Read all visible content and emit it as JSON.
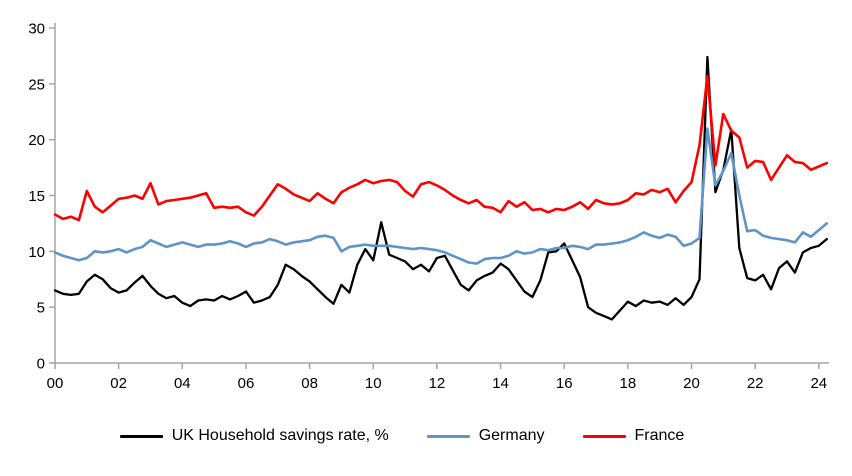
{
  "chart_data": {
    "type": "line",
    "title": "",
    "xlabel": "",
    "ylabel": "",
    "ylim": [
      0,
      30
    ],
    "xlim": [
      0,
      24.32
    ],
    "x_start": 0,
    "x_step": 0.25,
    "x_unit": "quarterly, years 2000-2024",
    "grid": "off",
    "legend_position": "bottom",
    "axis_color": "#a6a6a6",
    "tick_text_color": "#000000",
    "y_ticks": [
      0,
      5,
      10,
      15,
      20,
      25,
      30
    ],
    "x_ticks": [
      {
        "pos": 0,
        "label": "00"
      },
      {
        "pos": 2,
        "label": "02"
      },
      {
        "pos": 4,
        "label": "04"
      },
      {
        "pos": 6,
        "label": "06"
      },
      {
        "pos": 8,
        "label": "08"
      },
      {
        "pos": 10,
        "label": "10"
      },
      {
        "pos": 12,
        "label": "12"
      },
      {
        "pos": 14,
        "label": "14"
      },
      {
        "pos": 16,
        "label": "16"
      },
      {
        "pos": 18,
        "label": "18"
      },
      {
        "pos": 20,
        "label": "20"
      },
      {
        "pos": 22,
        "label": "22"
      },
      {
        "pos": 24,
        "label": "24"
      }
    ],
    "series": [
      {
        "name": "UK Household savings rate, %",
        "color": "#000000",
        "stroke_width": 2.3,
        "values": [
          6.5,
          6.2,
          6.1,
          6.2,
          7.3,
          7.9,
          7.5,
          6.7,
          6.3,
          6.5,
          7.2,
          7.8,
          6.9,
          6.2,
          5.8,
          6.0,
          5.4,
          5.1,
          5.6,
          5.7,
          5.6,
          6.0,
          5.7,
          6.0,
          6.4,
          5.4,
          5.6,
          5.9,
          7.0,
          8.8,
          8.4,
          7.8,
          7.3,
          6.6,
          5.9,
          5.3,
          7.0,
          6.3,
          8.8,
          10.2,
          9.2,
          12.6,
          9.7,
          9.4,
          9.1,
          8.4,
          8.8,
          8.2,
          9.4,
          9.6,
          8.3,
          7.0,
          6.5,
          7.4,
          7.8,
          8.1,
          8.9,
          8.4,
          7.4,
          6.4,
          5.9,
          7.4,
          9.9,
          10.0,
          10.7,
          9.2,
          7.7,
          5.0,
          4.5,
          4.2,
          3.9,
          4.7,
          5.5,
          5.1,
          5.6,
          5.4,
          5.5,
          5.2,
          5.8,
          5.2,
          5.9,
          7.5,
          27.4,
          15.3,
          17.3,
          20.9,
          10.3,
          7.6,
          7.4,
          7.9,
          6.6,
          8.5,
          9.1,
          8.1,
          9.9,
          10.3,
          10.5,
          11.1
        ]
      },
      {
        "name": "Germany",
        "color": "#5f94c9",
        "stroke_width": 2.6,
        "values": [
          9.9,
          9.6,
          9.4,
          9.2,
          9.4,
          10.0,
          9.9,
          10.0,
          10.2,
          9.9,
          10.2,
          10.4,
          11.0,
          10.7,
          10.4,
          10.6,
          10.8,
          10.6,
          10.4,
          10.6,
          10.6,
          10.7,
          10.9,
          10.7,
          10.4,
          10.7,
          10.8,
          11.1,
          10.9,
          10.6,
          10.8,
          10.9,
          11.0,
          11.3,
          11.4,
          11.2,
          10.0,
          10.4,
          10.5,
          10.6,
          10.5,
          10.5,
          10.5,
          10.4,
          10.3,
          10.2,
          10.3,
          10.2,
          10.1,
          9.9,
          9.6,
          9.3,
          9.0,
          8.9,
          9.3,
          9.4,
          9.4,
          9.6,
          10.0,
          9.8,
          9.9,
          10.2,
          10.1,
          10.3,
          10.3,
          10.5,
          10.4,
          10.2,
          10.6,
          10.6,
          10.7,
          10.8,
          11.0,
          11.3,
          11.7,
          11.4,
          11.2,
          11.5,
          11.3,
          10.5,
          10.7,
          11.2,
          21.0,
          15.9,
          17.2,
          18.8,
          15.0,
          11.8,
          11.9,
          11.4,
          11.2,
          11.1,
          11.0,
          10.8,
          11.7,
          11.3,
          11.9,
          12.5
        ]
      },
      {
        "name": "France",
        "color": "#ff0000",
        "stroke_width": 2.6,
        "values": [
          13.3,
          12.9,
          13.1,
          12.8,
          15.4,
          14.0,
          13.5,
          14.1,
          14.7,
          14.8,
          15.0,
          14.7,
          16.1,
          14.2,
          14.5,
          14.6,
          14.7,
          14.8,
          15.0,
          15.2,
          13.9,
          14.0,
          13.9,
          14.0,
          13.5,
          13.2,
          14.0,
          15.0,
          16.0,
          15.6,
          15.1,
          14.8,
          14.5,
          15.2,
          14.7,
          14.3,
          15.3,
          15.7,
          16.0,
          16.4,
          16.1,
          16.3,
          16.4,
          16.2,
          15.4,
          14.9,
          16.0,
          16.2,
          15.9,
          15.5,
          15.0,
          14.6,
          14.3,
          14.6,
          14.0,
          13.9,
          13.5,
          14.5,
          14.0,
          14.4,
          13.7,
          13.8,
          13.5,
          13.8,
          13.7,
          14.0,
          14.4,
          13.8,
          14.6,
          14.3,
          14.2,
          14.3,
          14.6,
          15.2,
          15.1,
          15.5,
          15.3,
          15.6,
          14.4,
          15.4,
          16.2,
          19.5,
          25.7,
          17.7,
          22.3,
          20.8,
          20.2,
          17.5,
          18.1,
          18.0,
          16.4,
          17.5,
          18.6,
          18.0,
          17.9,
          17.3,
          17.6,
          17.9
        ]
      }
    ]
  },
  "legend": {
    "items": [
      {
        "label": "UK Household savings rate, %"
      },
      {
        "label": "Germany"
      },
      {
        "label": "France"
      }
    ]
  }
}
